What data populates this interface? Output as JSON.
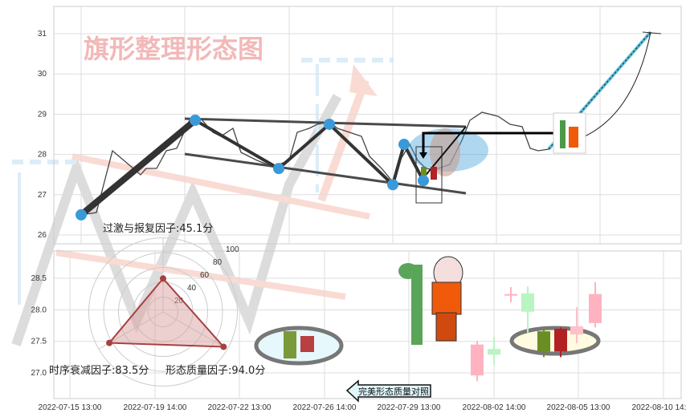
{
  "chart_data": {
    "type": "candlestick-pattern",
    "title": "旗形整理形态图",
    "grid": true,
    "top_panel": {
      "ylim": [
        25.7,
        31.7
      ],
      "yticks": [
        "31",
        "30",
        "29",
        "28",
        "27",
        "26"
      ],
      "pivot_prices": [
        26.5,
        28.85,
        27.65,
        28.75,
        27.25,
        28.25,
        27.35
      ],
      "target_price": 31.05
    },
    "bottom_panel": {
      "ylim": [
        26.6,
        28.9
      ],
      "yticks": [
        "28.5",
        "28.0",
        "27.5",
        "27.0"
      ],
      "candles": [
        {
          "o": 26.96,
          "h": 27.51,
          "l": 26.87,
          "c": 27.45,
          "color": "#ffb3c0"
        },
        {
          "o": 27.29,
          "h": 27.57,
          "l": 27.13,
          "c": 27.38,
          "color": "#b8f5c0"
        },
        {
          "o": 28.25,
          "h": 28.36,
          "l": 28.12,
          "c": 28.25,
          "color": "#ffb3c0"
        },
        {
          "o": 27.97,
          "h": 28.37,
          "l": 27.64,
          "c": 28.26,
          "color": "#b8f5c0"
        },
        {
          "o": 27.34,
          "h": 27.72,
          "l": 27.25,
          "c": 27.66,
          "color": "#6b8e23"
        },
        {
          "o": 27.7,
          "h": 27.72,
          "l": 27.25,
          "c": 27.34,
          "color": "#b22222"
        },
        {
          "o": 27.61,
          "h": 28.04,
          "l": 27.47,
          "c": 27.74,
          "color": "#ffc0c8"
        },
        {
          "o": 27.79,
          "h": 28.44,
          "l": 27.72,
          "c": 28.25,
          "color": "#ffb3c0"
        }
      ]
    },
    "xticks": [
      "2022-07-15 13:00",
      "2022-07-19 14:00",
      "2022-07-22 13:00",
      "2022-07-26 14:00",
      "2022-07-29 13:00",
      "2022-08-02 14:00",
      "2022-08-05 13:00",
      "2022-08-10 14:00"
    ],
    "radar": {
      "axis_ticks": [
        "20",
        "40",
        "60",
        "80",
        "100"
      ],
      "factors": [
        {
          "label": "过激与报复因子:45.1分",
          "value": 45.1
        },
        {
          "label": "形态质量因子:94.0分",
          "value": 94.0
        },
        {
          "label": "时序衰减因子:83.5分",
          "value": 83.5
        }
      ]
    },
    "callout": "完美形态质量对照",
    "colors": {
      "pivot": "#3a9ad9",
      "watermark": "#f2b8b8",
      "radar_fill": "#d9a0a0",
      "radar_line": "#a84040"
    }
  }
}
